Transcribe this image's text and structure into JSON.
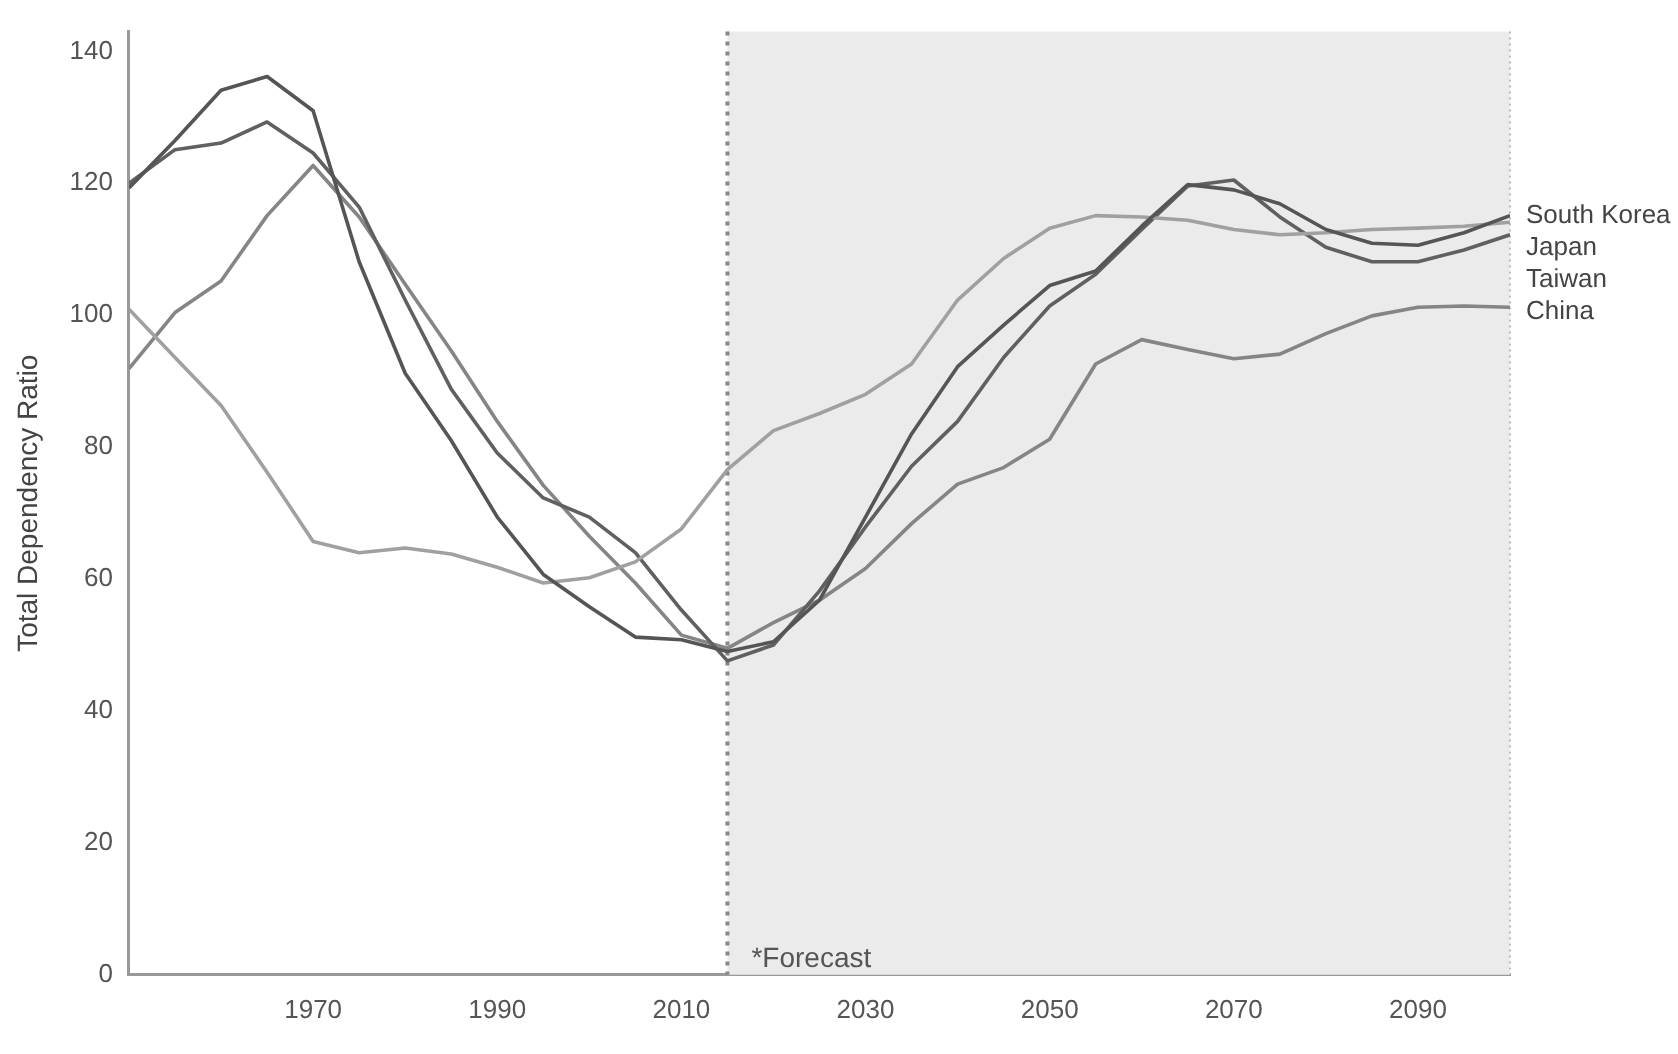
{
  "chart_data": {
    "type": "line",
    "ylabel": "Total Dependency Ratio",
    "x": [
      1950,
      1955,
      1960,
      1965,
      1970,
      1975,
      1980,
      1985,
      1990,
      1995,
      2000,
      2005,
      2010,
      2015,
      2020,
      2025,
      2030,
      2035,
      2040,
      2045,
      2050,
      2055,
      2060,
      2065,
      2070,
      2075,
      2080,
      2085,
      2090,
      2095,
      2100
    ],
    "series": [
      {
        "name": "South Korea",
        "color": "#555555",
        "values": [
          119.3,
          126.5,
          134.1,
          136.2,
          131.0,
          108.1,
          91.2,
          81.0,
          69.4,
          60.7,
          55.8,
          51.2,
          50.8,
          49.0,
          50.5,
          56.8,
          69.4,
          82.0,
          92.2,
          98.5,
          104.5,
          106.7,
          113.5,
          119.8,
          119.0,
          116.9,
          113.0,
          110.9,
          110.6,
          112.5,
          115.1
        ]
      },
      {
        "name": "Japan",
        "color": "#a0a0a0",
        "values": [
          100.9,
          93.6,
          86.3,
          76.2,
          65.7,
          64.0,
          64.7,
          63.8,
          61.8,
          59.4,
          60.2,
          62.6,
          67.6,
          76.6,
          82.5,
          85.1,
          88.0,
          92.6,
          102.3,
          108.6,
          113.2,
          115.1,
          114.9,
          114.4,
          113.0,
          112.2,
          112.5,
          113.0,
          113.2,
          113.5,
          114.1
        ]
      },
      {
        "name": "Taiwan",
        "color": "#606060",
        "values": [
          120.0,
          125.1,
          126.1,
          129.3,
          124.6,
          116.4,
          102.3,
          88.8,
          79.1,
          72.3,
          69.4,
          64.0,
          55.3,
          47.6,
          50.0,
          58.2,
          67.9,
          77.1,
          83.9,
          93.6,
          101.4,
          106.2,
          113.0,
          119.6,
          120.5,
          114.9,
          110.3,
          108.1,
          108.1,
          109.9,
          112.2
        ]
      },
      {
        "name": "China",
        "color": "#858585",
        "values": [
          91.9,
          100.4,
          105.2,
          115.1,
          122.7,
          114.9,
          104.7,
          94.6,
          83.9,
          74.2,
          66.5,
          59.4,
          51.5,
          49.5,
          53.4,
          56.8,
          61.6,
          68.4,
          74.4,
          76.9,
          81.2,
          92.6,
          96.3,
          94.8,
          93.4,
          94.1,
          97.2,
          99.9,
          101.2,
          101.4,
          101.2
        ]
      }
    ],
    "xlim": [
      1950,
      2100
    ],
    "xticks": [
      1970,
      1990,
      2010,
      2030,
      2050,
      2070,
      2090
    ],
    "ylim": [
      0,
      143
    ],
    "yticks": [
      0,
      20,
      40,
      60,
      80,
      100,
      120,
      140
    ],
    "bands": [
      {
        "axis": "x",
        "from": 2015,
        "to": 2100,
        "label": "*Forecast",
        "color": "#ebebeb"
      }
    ],
    "ref_lines": [
      {
        "axis": "x",
        "value": 2015,
        "color": "#888888",
        "line_style": "dotted"
      }
    ],
    "grid": false,
    "legend": false,
    "marker": "none",
    "line_style": "solid"
  }
}
